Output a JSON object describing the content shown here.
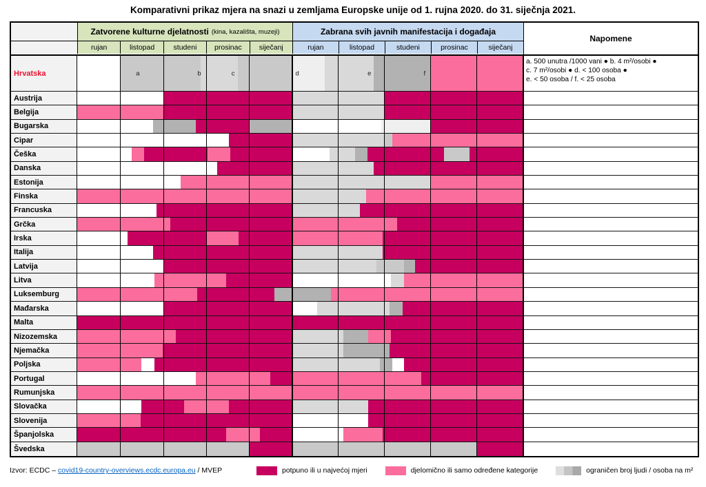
{
  "title": "Komparativni prikaz mjera na snazi u zemljama Europske unije od 1. rujna 2020. do 31. siječnja 2021.",
  "chart_data": {
    "type": "heatmap",
    "section1": {
      "label": "Zatvorene kulturne djelatnosti",
      "sublabel": "(kina, kazališta, muzeji)",
      "months": [
        "rujan",
        "listopad",
        "studeni",
        "prosinac",
        "siječanj"
      ]
    },
    "section2": {
      "label": "Zabrana svih javnih manifestacija i događaja",
      "months": [
        "rujan",
        "listopad",
        "studeni",
        "prosinac",
        "siječanj"
      ]
    },
    "notes_header": "Napomene",
    "colors": {
      "d": "#c7005f",
      "p": "#fb6d9c",
      "w": "#ffffff",
      "g1": "#efefef",
      "g2": "#d9d9d9",
      "g3": "#c9c9c9",
      "g4": "#b2b2b2",
      "header_green": "#d7e4bc",
      "header_blue": "#c5d9f1",
      "row_label_bg": "#f2f2f2",
      "croatia_red": "#e8112d"
    },
    "rows": [
      {
        "country": "Hrvatska",
        "red": true,
        "tall": true,
        "segments": [
          [
            "w",
            0,
            9.7
          ],
          [
            "g3",
            9.7,
            27.7
          ],
          [
            "g2",
            27.7,
            36.0
          ],
          [
            "g3",
            36.0,
            48.22
          ],
          [
            "g1",
            48.22,
            55.5
          ],
          [
            "g2",
            55.5,
            66.5
          ],
          [
            "g4",
            66.5,
            79.3
          ],
          [
            "p",
            79.3,
            100
          ]
        ],
        "markers": [
          [
            "a",
            13.6
          ],
          [
            "b",
            27.4
          ],
          [
            "c",
            35.0
          ],
          [
            "d",
            49.4
          ],
          [
            "e",
            65.6
          ],
          [
            "f",
            78.0
          ]
        ],
        "notes": [
          "a. 500 unutra /1000 vani ● b. 4 m²/osobi ●",
          "c. 7 m²/osobi ● d. < 100 osoba ●",
          "e. < 50 osoba / f. < 25 osoba"
        ]
      },
      {
        "country": "Austrija",
        "segments": [
          [
            "w",
            0,
            19.3
          ],
          [
            "d",
            19.3,
            48.22
          ],
          [
            "g2",
            48.22,
            68.9
          ],
          [
            "d",
            68.9,
            100
          ]
        ]
      },
      {
        "country": "Belgija",
        "segments": [
          [
            "p",
            0,
            19.3
          ],
          [
            "d",
            19.3,
            48.22
          ],
          [
            "g2",
            48.22,
            68.9
          ],
          [
            "d",
            68.9,
            100
          ]
        ]
      },
      {
        "country": "Bugarska",
        "segments": [
          [
            "w",
            0,
            17.0
          ],
          [
            "g4",
            17.0,
            26.6
          ],
          [
            "d",
            26.6,
            38.6
          ],
          [
            "g4",
            38.6,
            48.22
          ],
          [
            "w",
            48.22,
            68.3
          ],
          [
            "g1",
            68.3,
            79.3
          ],
          [
            "d",
            79.3,
            100
          ]
        ]
      },
      {
        "country": "Cipar",
        "segments": [
          [
            "w",
            0,
            34.0
          ],
          [
            "d",
            34.0,
            48.22
          ],
          [
            "g2",
            48.22,
            68.9
          ],
          [
            "g3",
            68.9,
            70.8
          ],
          [
            "p",
            70.8,
            100
          ]
        ]
      },
      {
        "country": "Češka",
        "segments": [
          [
            "w",
            0,
            12.2
          ],
          [
            "p",
            12.2,
            15.0
          ],
          [
            "d",
            15.0,
            29.2
          ],
          [
            "p",
            29.2,
            34.3
          ],
          [
            "d",
            34.3,
            48.22
          ],
          [
            "w",
            48.22,
            56.7
          ],
          [
            "g2",
            56.7,
            62.4
          ],
          [
            "g4",
            62.4,
            65.1
          ],
          [
            "d",
            65.1,
            82.4
          ],
          [
            "g3",
            82.4,
            88.1
          ],
          [
            "d",
            88.1,
            100
          ]
        ]
      },
      {
        "country": "Danska",
        "segments": [
          [
            "w",
            0,
            31.4
          ],
          [
            "d",
            31.4,
            48.22
          ],
          [
            "g2",
            48.22,
            66.5
          ],
          [
            "d",
            66.5,
            100
          ]
        ]
      },
      {
        "country": "Estonija",
        "segments": [
          [
            "w",
            0,
            23.2
          ],
          [
            "p",
            23.2,
            48.22
          ],
          [
            "g2",
            48.22,
            79.3
          ],
          [
            "p",
            79.3,
            100
          ]
        ]
      },
      {
        "country": "Finska",
        "segments": [
          [
            "p",
            0,
            48.22
          ],
          [
            "g2",
            48.22,
            64.9
          ],
          [
            "p",
            64.9,
            100
          ]
        ]
      },
      {
        "country": "Francuska",
        "segments": [
          [
            "w",
            0,
            17.8
          ],
          [
            "d",
            17.8,
            48.22
          ],
          [
            "g2",
            48.22,
            63.4
          ],
          [
            "d",
            63.4,
            100
          ]
        ]
      },
      {
        "country": "Grčka",
        "segments": [
          [
            "p",
            0,
            20.9
          ],
          [
            "d",
            20.9,
            48.22
          ],
          [
            "p",
            48.22,
            71.9
          ],
          [
            "d",
            71.9,
            100
          ]
        ]
      },
      {
        "country": "Irska",
        "segments": [
          [
            "w",
            0,
            11.3
          ],
          [
            "d",
            11.3,
            28.9
          ],
          [
            "p",
            28.9,
            36.2
          ],
          [
            "d",
            36.2,
            48.22
          ],
          [
            "p",
            48.22,
            68.6
          ],
          [
            "d",
            68.6,
            100
          ]
        ]
      },
      {
        "country": "Italija",
        "segments": [
          [
            "w",
            0,
            17.0
          ],
          [
            "d",
            17.0,
            48.22
          ],
          [
            "g2",
            48.22,
            68.5
          ],
          [
            "d",
            68.5,
            100
          ]
        ]
      },
      {
        "country": "Latvija",
        "segments": [
          [
            "w",
            0,
            19.5
          ],
          [
            "d",
            19.5,
            48.22
          ],
          [
            "g2",
            48.22,
            67.2
          ],
          [
            "g3",
            67.2,
            73.4
          ],
          [
            "g4",
            73.4,
            75.9
          ],
          [
            "d",
            75.9,
            100
          ]
        ]
      },
      {
        "country": "Litva",
        "segments": [
          [
            "w",
            0,
            17.3
          ],
          [
            "p",
            17.3,
            33.4
          ],
          [
            "d",
            33.4,
            48.22
          ],
          [
            "w",
            48.22,
            70.5
          ],
          [
            "g2",
            70.5,
            73.4
          ],
          [
            "p",
            73.4,
            100
          ]
        ]
      },
      {
        "country": "Luksemburg",
        "segments": [
          [
            "p",
            0,
            26.9
          ],
          [
            "d",
            26.9,
            44.2
          ],
          [
            "g4",
            44.2,
            57.0
          ],
          [
            "p",
            57.0,
            100
          ]
        ]
      },
      {
        "country": "Mađarska",
        "segments": [
          [
            "w",
            0,
            19.5
          ],
          [
            "d",
            19.5,
            48.22
          ],
          [
            "w",
            48.22,
            53.8
          ],
          [
            "g2",
            53.8,
            70.2
          ],
          [
            "g4",
            70.2,
            73.1
          ],
          [
            "d",
            73.1,
            100
          ]
        ]
      },
      {
        "country": "Malta",
        "segments": [
          [
            "d",
            0,
            100
          ]
        ]
      },
      {
        "country": "Nizozemska",
        "segments": [
          [
            "p",
            0,
            22.1
          ],
          [
            "d",
            22.1,
            48.22
          ],
          [
            "g2",
            48.22,
            59.7
          ],
          [
            "g4",
            59.7,
            65.4
          ],
          [
            "p",
            65.4,
            70.5
          ],
          [
            "d",
            70.5,
            100
          ]
        ]
      },
      {
        "country": "Njemačka",
        "segments": [
          [
            "p",
            0,
            19.2
          ],
          [
            "d",
            19.2,
            48.22
          ],
          [
            "g2",
            48.22,
            59.7
          ],
          [
            "g4",
            59.7,
            70.2
          ],
          [
            "d",
            70.2,
            100
          ]
        ]
      },
      {
        "country": "Poljska",
        "segments": [
          [
            "p",
            0,
            14.4
          ],
          [
            "w",
            14.4,
            17.3
          ],
          [
            "d",
            17.3,
            48.22
          ],
          [
            "g2",
            48.22,
            67.9
          ],
          [
            "g4",
            67.9,
            70.8
          ],
          [
            "w",
            70.8,
            73.3
          ],
          [
            "d",
            73.3,
            100
          ]
        ]
      },
      {
        "country": "Portugal",
        "segments": [
          [
            "w",
            0,
            26.7
          ],
          [
            "p",
            26.7,
            43.3
          ],
          [
            "d",
            43.3,
            48.22
          ],
          [
            "p",
            48.22,
            77.3
          ],
          [
            "d",
            77.3,
            100
          ]
        ]
      },
      {
        "country": "Rumunjska",
        "segments": [
          [
            "p",
            0,
            100
          ]
        ]
      },
      {
        "country": "Slovačka",
        "segments": [
          [
            "w",
            0,
            14.4
          ],
          [
            "d",
            14.4,
            24.0
          ],
          [
            "p",
            24.0,
            34.0
          ],
          [
            "d",
            34.0,
            48.22
          ],
          [
            "g2",
            48.22,
            65.4
          ],
          [
            "d",
            65.4,
            100
          ]
        ]
      },
      {
        "country": "Slovenija",
        "segments": [
          [
            "p",
            0,
            14.2
          ],
          [
            "d",
            14.2,
            48.22
          ],
          [
            "w",
            48.22,
            65.4
          ],
          [
            "d",
            65.4,
            100
          ]
        ]
      },
      {
        "country": "Španjolska",
        "segments": [
          [
            "d",
            0,
            33.4
          ],
          [
            "p",
            33.4,
            41.0
          ],
          [
            "d",
            41.0,
            48.22
          ],
          [
            "w",
            48.22,
            59.7
          ],
          [
            "p",
            59.7,
            68.6
          ],
          [
            "d",
            68.6,
            100
          ]
        ]
      },
      {
        "country": "Švedska",
        "segments": [
          [
            "g3",
            0,
            38.6
          ],
          [
            "d",
            38.6,
            48.22
          ],
          [
            "g3",
            48.22,
            89.6
          ],
          [
            "d",
            89.6,
            100
          ]
        ]
      }
    ]
  },
  "footer": {
    "source_prefix": "Izvor: ECDC – ",
    "source_link": "covid19-country-overviews.ecdc.europa.eu",
    "source_suffix": " / MVEP",
    "legend": [
      {
        "key": "d",
        "label": "potpuno ili u najvećoj mjeri"
      },
      {
        "key": "p",
        "label": "djelomično ili samo određene kategorije"
      },
      {
        "key": "grad",
        "label": "ograničen broj ljudi / osoba na m²"
      }
    ]
  }
}
